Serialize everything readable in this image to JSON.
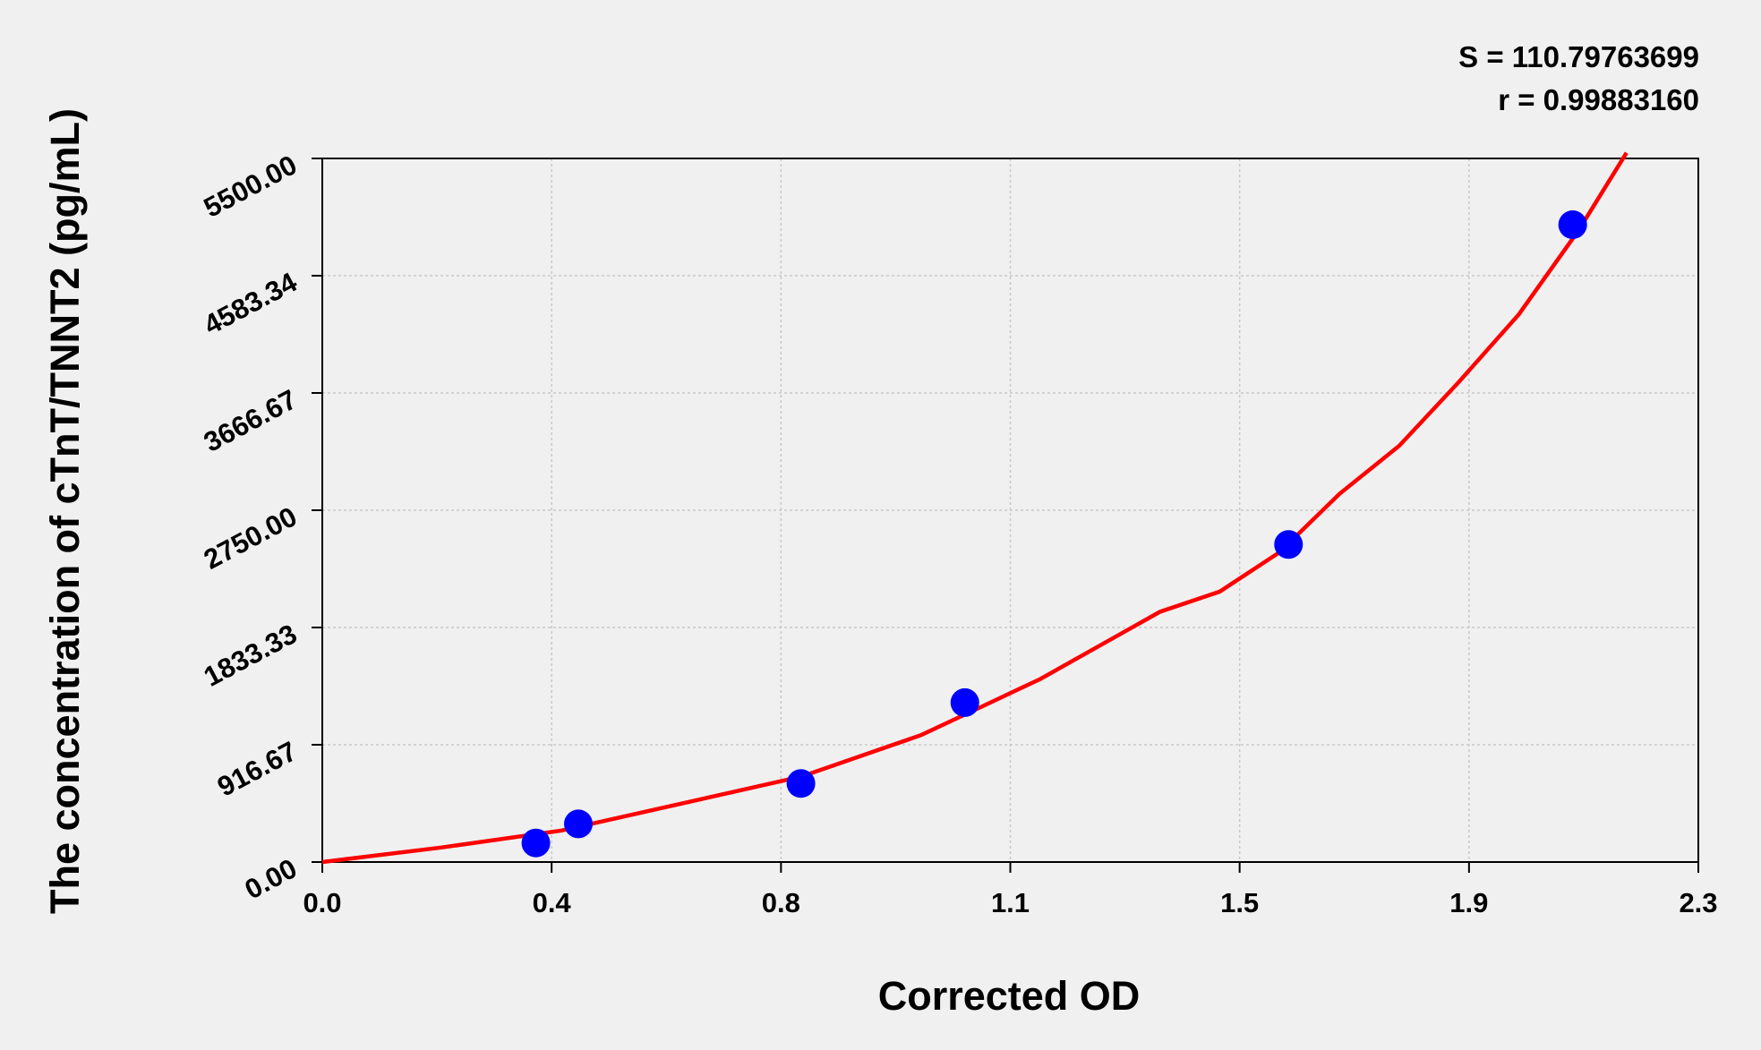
{
  "chart_data": {
    "type": "scatter",
    "xlabel": "Corrected OD",
    "ylabel": "The concentration of cTnT/TNNT2 (pg/mL)",
    "annotations": [
      "S = 110.79763699",
      "r = 0.99883160"
    ],
    "x": [
      0.357,
      0.428,
      0.8,
      1.074,
      1.615,
      2.09
    ],
    "series": [
      {
        "color": "#0000ff",
        "values": [
          149,
          298,
          614,
          1246,
          2482,
          4982
        ]
      }
    ],
    "fit": {
      "color": "#ff0000",
      "x": [
        0,
        0.2,
        0.4,
        0.8,
        1.0,
        1.1,
        1.2,
        1.3,
        1.4,
        1.5,
        1.6,
        1.7,
        1.8,
        1.9,
        2.0,
        2.1,
        2.18
      ],
      "values": [
        0,
        114,
        246,
        667,
        991,
        1210,
        1430,
        1693,
        1956,
        2114,
        2421,
        2877,
        3254,
        3754,
        4281,
        4939,
        5544
      ]
    },
    "xlim": [
      0,
      2.3
    ],
    "xticks": [
      {
        "value": 0,
        "label": "0.0"
      },
      {
        "value": 0.3833,
        "label": "0.4"
      },
      {
        "value": 0.7667,
        "label": "0.8"
      },
      {
        "value": 1.15,
        "label": "1.1"
      },
      {
        "value": 1.5333,
        "label": "1.5"
      },
      {
        "value": 1.9167,
        "label": "1.9"
      },
      {
        "value": 2.3,
        "label": "2.3"
      }
    ],
    "ylim": [
      0,
      5500
    ],
    "yticks": [
      {
        "value": 0,
        "label": "0.00"
      },
      916.67,
      1833.33,
      {
        "value": 2750,
        "label": "2750.00"
      },
      3666.67,
      4583.34,
      {
        "value": 5500,
        "label": "5500.00"
      }
    ],
    "grid": true
  }
}
